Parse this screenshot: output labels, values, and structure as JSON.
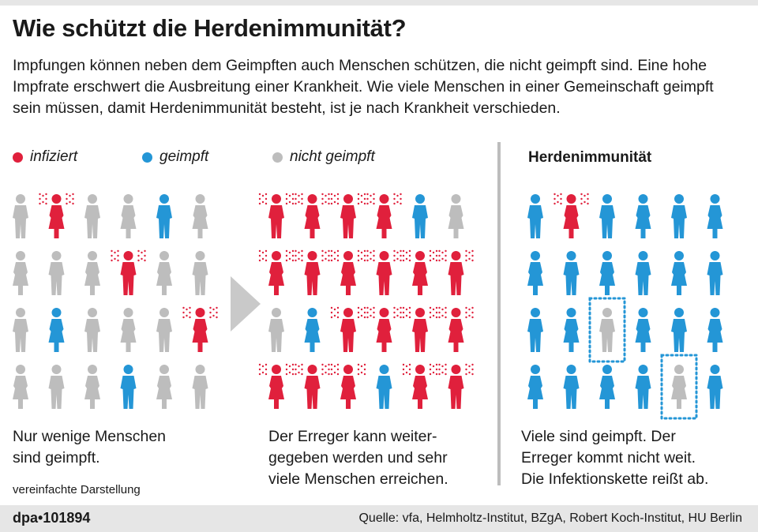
{
  "title": "Wie schützt die Herdenimmunität?",
  "intro": "Impfungen können neben dem Geimpften auch Menschen schützen, die nicht geimpft sind. Eine hohe Impfrate erschwert die Ausbreitung einer Krankheit. Wie viele Menschen in einer Gemeinschaft geimpft sein müssen, damit Herdenimmunität besteht, ist je nach Krankheit verschieden.",
  "legend": [
    {
      "label": "infiziert",
      "color": "#e0203c"
    },
    {
      "label": "geimpft",
      "color": "#2496d6"
    },
    {
      "label": "nicht geimpft",
      "color": "#bdbdbd"
    }
  ],
  "herd_heading": "Herdenimmunität",
  "colors": {
    "infected": "#e0203c",
    "vaccinated": "#2496d6",
    "unvaccinated": "#bdbdbd",
    "highlight": "#2496d6",
    "divider": "#bdbdbd"
  },
  "panels": [
    {
      "caption": [
        "Nur wenige Menschen",
        "sind geimpft."
      ],
      "grid": [
        [
          "n",
          "i",
          "n",
          "n",
          "v",
          "n"
        ],
        [
          "n",
          "n",
          "n",
          "i",
          "n",
          "n"
        ],
        [
          "n",
          "v",
          "n",
          "n",
          "n",
          "i"
        ],
        [
          "n",
          "n",
          "n",
          "v",
          "n",
          "n"
        ]
      ],
      "highlighted": []
    },
    {
      "caption": [
        "Der Erreger kann weiter-",
        "gegeben werden und sehr",
        "viele Menschen erreichen."
      ],
      "grid": [
        [
          "i",
          "i",
          "i",
          "i",
          "v",
          "n"
        ],
        [
          "i",
          "i",
          "i",
          "i",
          "i",
          "i"
        ],
        [
          "n",
          "v",
          "i",
          "i",
          "i",
          "i"
        ],
        [
          "i",
          "i",
          "i",
          "v",
          "i",
          "i"
        ]
      ],
      "highlighted": []
    },
    {
      "caption": [
        "Viele sind geimpft. Der",
        "Erreger kommt nicht weit.",
        "Die Infektionskette reißt ab."
      ],
      "grid": [
        [
          "v",
          "i",
          "v",
          "v",
          "v",
          "v"
        ],
        [
          "v",
          "v",
          "v",
          "v",
          "v",
          "v"
        ],
        [
          "v",
          "v",
          "n",
          "v",
          "v",
          "v"
        ],
        [
          "v",
          "v",
          "v",
          "v",
          "n",
          "v"
        ]
      ],
      "highlighted": [
        [
          2,
          2
        ],
        [
          3,
          4
        ]
      ]
    }
  ],
  "note": "vereinfachte Darstellung",
  "footer": {
    "logo": "dpa•101894",
    "source": "Quelle: vfa, Helmholtz-Institut, BZgA, Robert Koch-Institut, HU Berlin"
  }
}
